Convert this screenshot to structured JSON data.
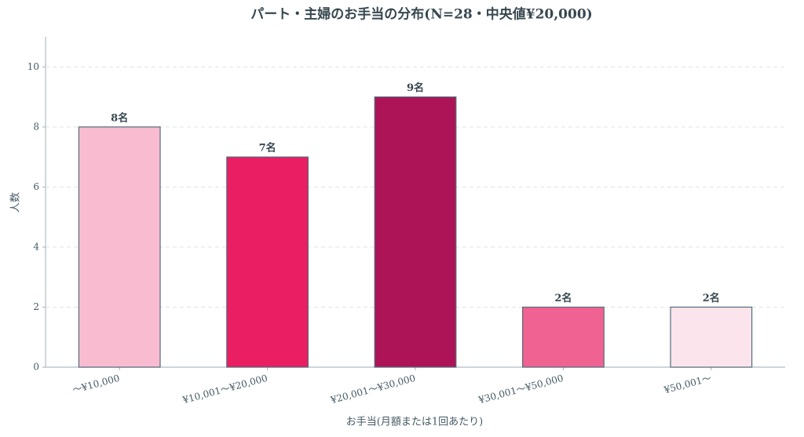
{
  "chart_data": {
    "type": "bar",
    "title": "パート・主婦のお手当の分布(N=28・中央値¥20,000)",
    "xlabel": "お手当(月額または1回あたり)",
    "ylabel": "人数",
    "categories": [
      "〜¥10,000",
      "¥10,001〜¥20,000",
      "¥20,001〜¥30,000",
      "¥30,001〜¥50,000",
      "¥50,001〜"
    ],
    "values": [
      8,
      7,
      9,
      2,
      2
    ],
    "value_labels": [
      "8名",
      "7名",
      "9名",
      "2名",
      "2名"
    ],
    "colors": [
      "#f8bbd0",
      "#e91e63",
      "#ad1457",
      "#f06292",
      "#fce4ec"
    ],
    "ylim": [
      0,
      11
    ],
    "yticks": [
      0,
      2,
      4,
      6,
      8,
      10
    ],
    "grid": true
  }
}
